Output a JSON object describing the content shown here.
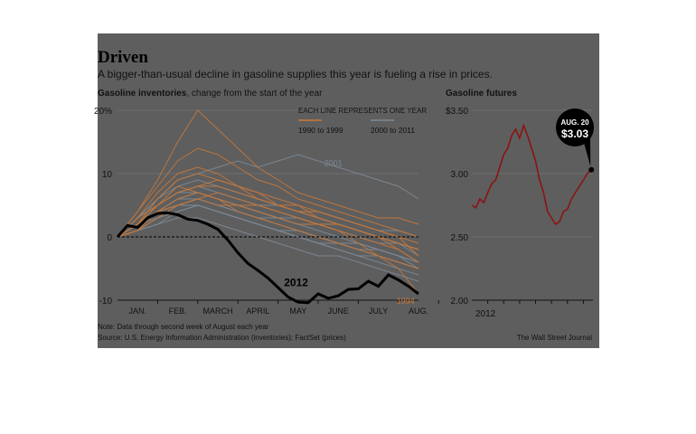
{
  "header": {
    "title": "Driven",
    "subtitle": "A bigger-than-usual decline in gasoline supplies this year is fueling a rise in prices."
  },
  "footer": {
    "note": "Note: Data through second week of August each year",
    "source": "Source: U.S. Energy Information Administration (inventories); FactSet (prices)",
    "credit": "The Wall Street Journal"
  },
  "colors": {
    "background": "#5e5e5e",
    "line_1990s": "#c8783a",
    "line_2000s": "#7d8a96",
    "line_2012": "#000000",
    "futures": "#8a1414"
  },
  "chart_data": [
    {
      "type": "line",
      "title_bold": "Gasoline inventories",
      "title_rest": ", change from the start of the year",
      "ylim": [
        -10,
        20
      ],
      "yticks": [
        "20%",
        "10",
        "0",
        "-10"
      ],
      "ytick_values": [
        20,
        10,
        0,
        -10
      ],
      "xlim": [
        0,
        7.5
      ],
      "xticks": [
        "JAN.",
        "FEB.",
        "MARCH",
        "APRIL",
        "MAY",
        "JUNE",
        "JULY",
        "AUG."
      ],
      "legend": {
        "heading": "EACH LINE REPRESENTS ONE YEAR",
        "items": [
          "1990 to 1999",
          "2000 to 2011"
        ]
      },
      "annotations": [
        "2012",
        "2001",
        "1994"
      ],
      "highlight": {
        "name": "2012",
        "x": [
          0,
          0.25,
          0.5,
          0.75,
          1.0,
          1.25,
          1.5,
          1.75,
          2.0,
          2.25,
          2.5,
          2.75,
          3.0,
          3.25,
          3.5,
          3.75,
          4.0,
          4.25,
          4.5,
          4.75,
          5.0,
          5.25,
          5.5,
          5.75,
          6.0,
          6.25,
          6.5,
          6.75,
          7.0,
          7.25,
          7.5
        ],
        "y": [
          0,
          1.8,
          1.5,
          3.0,
          3.7,
          3.8,
          3.5,
          2.8,
          2.6,
          2.0,
          1.2,
          -0.5,
          -2.5,
          -4.2,
          -5.3,
          -6.5,
          -8.0,
          -9.5,
          -10.3,
          -10.4,
          -9.0,
          -9.7,
          -9.3,
          -8.3,
          -8.2,
          -7.0,
          -7.8,
          -6.0,
          -6.8,
          -7.8,
          -9.0
        ]
      },
      "series_1990s": [
        [
          0,
          2,
          5,
          8,
          7,
          6,
          4,
          3,
          2,
          1,
          0,
          -1,
          -2,
          -3,
          -4,
          -5
        ],
        [
          0,
          3,
          7,
          10,
          11,
          10,
          8,
          7,
          5,
          4,
          3,
          2,
          1,
          0,
          -1,
          -2
        ],
        [
          0,
          4,
          8,
          12,
          14,
          13,
          11,
          9,
          8,
          6,
          5,
          4,
          3,
          2,
          1,
          0
        ],
        [
          0,
          1,
          4,
          6,
          7,
          6,
          5,
          5,
          4,
          3,
          2,
          2,
          1,
          0,
          -1,
          -2
        ],
        [
          0,
          2,
          6,
          9,
          10,
          9,
          8,
          6,
          5,
          4,
          4,
          3,
          2,
          1,
          0,
          -1
        ],
        [
          0,
          3,
          5,
          7,
          8,
          8,
          7,
          6,
          5,
          5,
          4,
          3,
          2,
          1,
          0,
          -3
        ],
        [
          0,
          2,
          4,
          5,
          6,
          5,
          5,
          4,
          3,
          2,
          2,
          1,
          0,
          -1,
          -2,
          -4
        ],
        [
          0,
          1,
          3,
          5,
          6,
          7,
          6,
          5,
          4,
          3,
          2,
          1,
          -1,
          -3,
          -5,
          -9
        ],
        [
          0,
          4,
          9,
          15,
          20,
          17,
          14,
          11,
          9,
          7,
          6,
          5,
          4,
          3,
          3,
          2
        ],
        [
          0,
          2,
          5,
          7,
          8,
          9,
          8,
          7,
          6,
          5,
          3,
          2,
          1,
          0,
          -2,
          -4
        ]
      ],
      "series_2000s": [
        [
          0,
          3,
          6,
          9,
          10,
          11,
          12,
          11,
          12,
          13,
          12,
          11,
          10,
          9,
          8,
          6
        ],
        [
          0,
          2,
          4,
          6,
          7,
          6,
          5,
          4,
          3,
          2,
          1,
          0,
          -1,
          -2,
          -3,
          -4
        ],
        [
          0,
          2,
          5,
          7,
          8,
          7,
          6,
          5,
          5,
          4,
          3,
          2,
          1,
          0,
          -1,
          -3
        ],
        [
          0,
          1,
          3,
          4,
          5,
          4,
          3,
          2,
          1,
          0,
          -1,
          -2,
          -3,
          -4,
          -5,
          -6
        ],
        [
          0,
          2,
          4,
          6,
          6,
          5,
          4,
          3,
          2,
          1,
          0,
          -1,
          -2,
          -2,
          -3,
          -5
        ],
        [
          0,
          3,
          6,
          8,
          9,
          8,
          7,
          6,
          5,
          4,
          4,
          3,
          2,
          1,
          1,
          0
        ],
        [
          0,
          2,
          3,
          5,
          5,
          4,
          3,
          2,
          1,
          1,
          0,
          -1,
          -1,
          -2,
          -3,
          -4
        ],
        [
          0,
          1,
          2,
          3,
          3,
          2,
          1,
          0,
          -1,
          -2,
          -3,
          -3,
          -4,
          -5,
          -6,
          -7
        ],
        [
          0,
          2,
          4,
          5,
          6,
          5,
          4,
          3,
          3,
          2,
          2,
          1,
          0,
          -1,
          -1,
          -2
        ],
        [
          0,
          3,
          5,
          7,
          7,
          6,
          5,
          4,
          3,
          3,
          2,
          2,
          1,
          0,
          -1,
          -2
        ],
        [
          0,
          2,
          4,
          5,
          5,
          4,
          3,
          2,
          1,
          0,
          -1,
          -2,
          -3,
          -3,
          -4,
          -5
        ],
        [
          0,
          1,
          2,
          4,
          5,
          4,
          3,
          2,
          1,
          0,
          -1,
          -1,
          -2,
          -3,
          -4,
          -5
        ]
      ]
    },
    {
      "type": "line",
      "title": "Gasoline futures",
      "ylim": [
        2.0,
        3.5
      ],
      "yticks": [
        "$3.50",
        "3.00",
        "2.50",
        "2.00"
      ],
      "ytick_values": [
        3.5,
        3.0,
        2.5,
        2.0
      ],
      "xlim": [
        0,
        7.6
      ],
      "xticks": [
        "2012"
      ],
      "callout": {
        "date": "AUG. 20",
        "value": "$3.03"
      },
      "x": [
        0,
        0.25,
        0.5,
        0.75,
        1.0,
        1.25,
        1.5,
        1.75,
        2.0,
        2.25,
        2.5,
        2.75,
        3.0,
        3.25,
        3.5,
        3.75,
        4.0,
        4.25,
        4.5,
        4.75,
        5.0,
        5.25,
        5.5,
        5.75,
        6.0,
        6.25,
        6.5,
        6.75,
        7.0,
        7.25,
        7.5
      ],
      "y": [
        2.75,
        2.73,
        2.8,
        2.77,
        2.85,
        2.92,
        2.95,
        3.05,
        3.15,
        3.2,
        3.3,
        3.35,
        3.28,
        3.38,
        3.3,
        3.2,
        3.1,
        2.95,
        2.85,
        2.7,
        2.65,
        2.6,
        2.62,
        2.7,
        2.72,
        2.8,
        2.85,
        2.9,
        2.95,
        3.0,
        3.03
      ]
    }
  ]
}
